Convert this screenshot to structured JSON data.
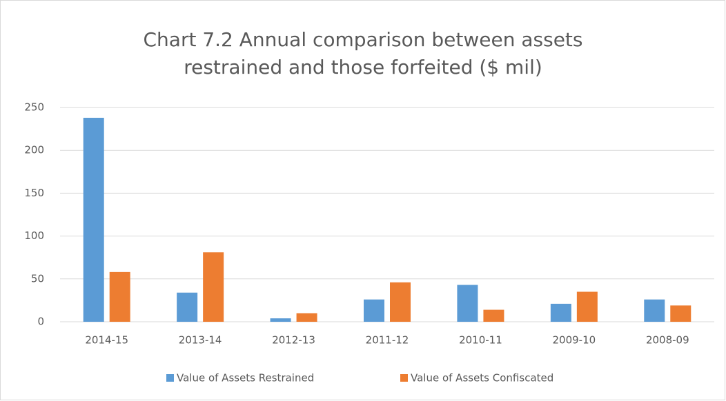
{
  "chart_data": {
    "type": "bar",
    "title": "Chart 7.2 Annual comparison between assets restrained and those forfeited ($ mil)",
    "categories": [
      "2014-15",
      "2013-14",
      "2012-13",
      "2011-12",
      "2010-11",
      "2009-10",
      "2008-09"
    ],
    "series": [
      {
        "name": "Value of Assets Restrained",
        "color": "#5b9bd5",
        "values": [
          238,
          34,
          4,
          26,
          43,
          21,
          26
        ]
      },
      {
        "name": "Value of Assets Confiscated",
        "color": "#ed7d31",
        "values": [
          58,
          81,
          10,
          46,
          14,
          35,
          19
        ]
      }
    ],
    "ylim": [
      0,
      250
    ],
    "yticks": [
      0,
      50,
      100,
      150,
      200,
      250
    ],
    "grid": true,
    "legend": "bottom"
  }
}
